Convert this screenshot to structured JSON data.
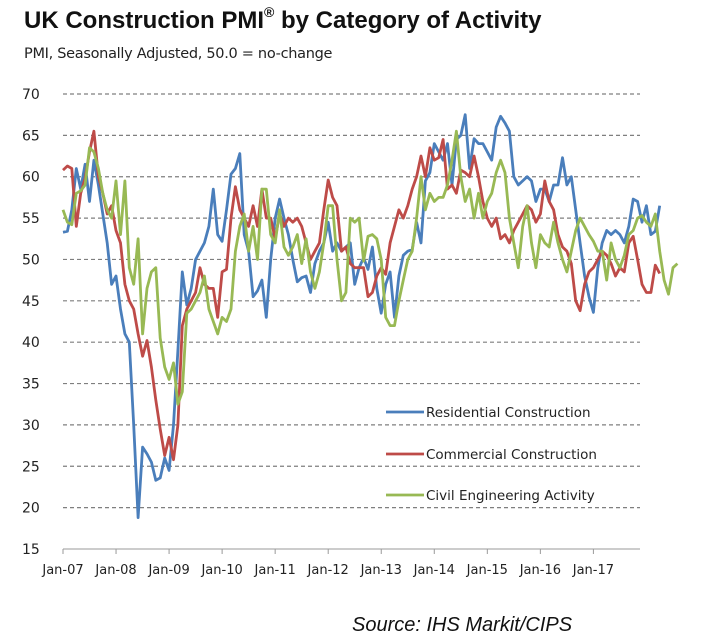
{
  "chart_data": {
    "type": "line",
    "title": "UK Construction PMI",
    "title_mark": "®",
    "title_suffix": " by Category of Activity",
    "subtitle": "PMI, Seasonally Adjusted, 50.0 = no-change",
    "source": "Source: IHS Markit/CIPS",
    "xlabel": "",
    "ylabel": "",
    "ylim": [
      15,
      70
    ],
    "yticks": [
      15,
      20,
      25,
      30,
      35,
      40,
      45,
      50,
      55,
      60,
      65,
      70
    ],
    "xticks": [
      "Jan-07",
      "Jan-08",
      "Jan-09",
      "Jan-10",
      "Jan-11",
      "Jan-12",
      "Jan-13",
      "Jan-14",
      "Jan-15",
      "Jan-16",
      "Jan-17"
    ],
    "x_start": "Jan-07",
    "x_frequency": "monthly",
    "grid": "horizontal dashed",
    "legend_position": "bottom-right",
    "series": [
      {
        "name": "Residential Construction",
        "color": "#4a7ebb",
        "values": [
          53.3,
          53.4,
          56,
          61,
          58.5,
          61.5,
          57,
          62,
          59,
          55.5,
          52,
          47,
          48,
          44,
          41,
          40,
          30,
          18.8,
          27.3,
          26.5,
          25.5,
          23.3,
          23.6,
          26,
          24.5,
          30,
          39,
          48.5,
          44.5,
          46.5,
          50,
          51,
          52,
          54,
          58.5,
          53,
          52.2,
          56,
          60.3,
          61,
          62.8,
          53,
          51,
          45.5,
          46.2,
          47.5,
          43,
          50,
          55,
          57.3,
          55,
          53,
          50,
          47.3,
          47.8,
          48,
          46,
          49.5,
          51,
          52,
          54.5,
          51,
          52,
          51,
          51.5,
          52,
          47,
          49,
          50.2,
          48.8,
          51.5,
          46.5,
          43.5,
          47,
          48.5,
          43,
          48,
          50.5,
          51,
          51.2,
          54.5,
          52,
          59.5,
          60.5,
          64,
          63,
          62,
          64,
          59,
          64.5,
          65,
          67.5,
          61,
          64.6,
          64,
          64,
          63,
          62,
          66,
          67.3,
          66.5,
          65.5,
          60,
          59,
          59.5,
          60,
          59.5,
          57,
          58.5,
          58.5,
          57,
          59,
          59,
          62.3,
          59,
          60,
          56,
          52,
          48,
          45.5,
          43.6,
          49,
          52,
          53.5,
          53,
          53.5,
          53,
          52,
          54,
          57.3,
          57,
          54.5,
          56.5,
          53,
          53.4,
          56.5
        ]
      },
      {
        "name": "Commercial Construction",
        "color": "#be4b48",
        "values": [
          60.8,
          61.3,
          61,
          54,
          58,
          59.8,
          63,
          65.5,
          60,
          58,
          55.5,
          56.5,
          53.5,
          52,
          47,
          45,
          44,
          41,
          38.3,
          40.2,
          37,
          33,
          29.5,
          26.3,
          28.5,
          25.8,
          30,
          42,
          44,
          45,
          46,
          49,
          47,
          46.5,
          46.5,
          43,
          48.5,
          48.8,
          55,
          58.8,
          56,
          55,
          54,
          56.5,
          54,
          58.5,
          55,
          55,
          52.5,
          55.5,
          54,
          55,
          54.5,
          55,
          54,
          52,
          50,
          51,
          52,
          56,
          59.6,
          57.5,
          56.5,
          51,
          51.5,
          49.5,
          49,
          49,
          49,
          45.5,
          46,
          48,
          49,
          48.2,
          52,
          54,
          56,
          55,
          56.5,
          58.5,
          60,
          62.5,
          60,
          63.5,
          62,
          62.3,
          64.5,
          58.5,
          59,
          58,
          60.8,
          60.5,
          60,
          62.5,
          60,
          57,
          55,
          54,
          55,
          52.5,
          53,
          52,
          53.5,
          54.5,
          55.5,
          56.5,
          56,
          54.5,
          55.5,
          59.5,
          57,
          56,
          53,
          51.5,
          51,
          49.5,
          45,
          43.8,
          47,
          48.5,
          49,
          50,
          51,
          50.5,
          49.5,
          48,
          49,
          48.5,
          52,
          52.8,
          50,
          47,
          46,
          46,
          49.3,
          48.3
        ]
      },
      {
        "name": "Civil Engineering Activity",
        "color": "#98b954",
        "values": [
          56,
          54.5,
          54.2,
          58,
          58.3,
          59,
          63.5,
          63,
          61,
          58,
          56,
          55,
          59.5,
          53,
          59.5,
          49,
          47,
          52.5,
          41,
          46.5,
          48.5,
          49,
          40.5,
          37,
          35.5,
          37.5,
          32.5,
          34,
          43.5,
          44,
          45,
          46,
          48,
          44,
          42.5,
          41,
          43,
          42.5,
          44,
          51,
          54,
          55.5,
          51,
          54,
          50,
          58.5,
          58.5,
          53,
          52,
          56,
          51.5,
          50.5,
          51.5,
          53,
          49.5,
          52.5,
          48.5,
          46.5,
          48.5,
          52,
          56.5,
          56.5,
          50,
          45,
          46,
          55,
          54.5,
          55,
          49.8,
          52.8,
          53,
          52.5,
          50,
          43,
          42,
          42,
          45,
          47.5,
          50,
          51,
          55,
          60,
          56,
          58,
          57,
          57.5,
          57.5,
          59,
          62,
          65.5,
          60,
          57,
          58.5,
          55,
          58,
          55,
          57,
          58,
          60.5,
          62,
          60.5,
          55,
          52,
          49,
          54,
          56.5,
          52,
          49,
          53,
          52,
          51.5,
          54.5,
          52,
          50,
          48.5,
          51,
          53.5,
          55,
          54,
          53,
          52.2,
          51,
          51,
          47.5,
          52,
          50,
          49,
          50.5,
          53,
          53.5,
          55,
          55.3,
          54.5,
          54,
          55.5,
          51,
          47.5,
          45.8,
          49,
          49.5
        ]
      }
    ]
  }
}
